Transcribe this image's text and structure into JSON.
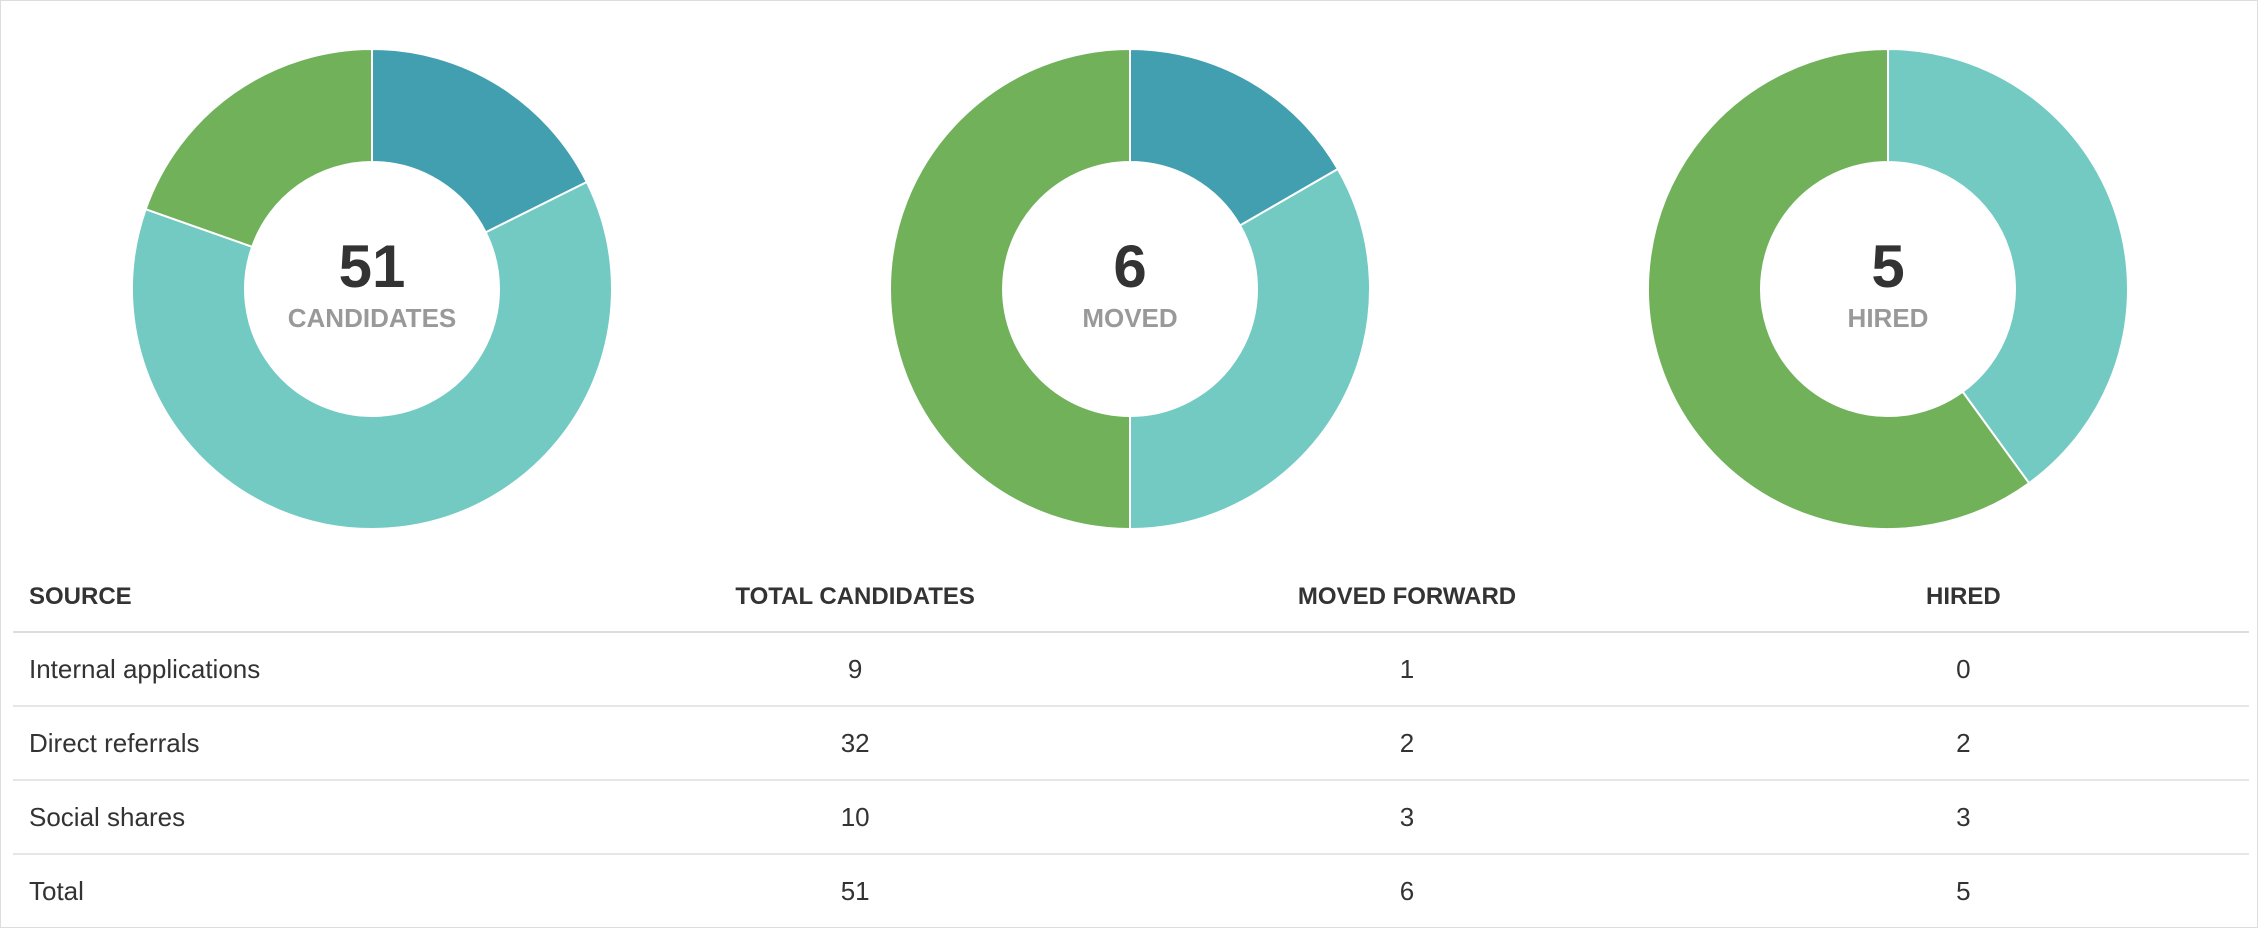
{
  "colors": {
    "segment_a": "#429fb0",
    "segment_b": "#72cac3",
    "segment_c": "#70b15a",
    "separator": "#ffffff"
  },
  "chart_data": [
    {
      "type": "pie",
      "donut": true,
      "title": "",
      "center_value": "51",
      "center_label": "CANDIDATES",
      "slices": [
        {
          "label": "Internal applications",
          "value": 9,
          "color": "#429fb0"
        },
        {
          "label": "Direct referrals",
          "value": 32,
          "color": "#72cac3"
        },
        {
          "label": "Social shares",
          "value": 10,
          "color": "#70b15a"
        }
      ]
    },
    {
      "type": "pie",
      "donut": true,
      "title": "",
      "center_value": "6",
      "center_label": "MOVED",
      "slices": [
        {
          "label": "Internal applications",
          "value": 1,
          "color": "#429fb0"
        },
        {
          "label": "Direct referrals",
          "value": 2,
          "color": "#72cac3"
        },
        {
          "label": "Social shares",
          "value": 3,
          "color": "#70b15a"
        }
      ]
    },
    {
      "type": "pie",
      "donut": true,
      "title": "",
      "center_value": "5",
      "center_label": "HIRED",
      "slices": [
        {
          "label": "Internal applications",
          "value": 0,
          "color": "#429fb0"
        },
        {
          "label": "Direct referrals",
          "value": 2,
          "color": "#72cac3"
        },
        {
          "label": "Social shares",
          "value": 3,
          "color": "#70b15a"
        }
      ]
    }
  ],
  "table": {
    "headers": {
      "source": "SOURCE",
      "total": "TOTAL CANDIDATES",
      "moved": "MOVED FORWARD",
      "hired": "HIRED"
    },
    "rows": [
      {
        "source": "Internal applications",
        "total": "9",
        "moved": "1",
        "hired": "0"
      },
      {
        "source": "Direct referrals",
        "total": "32",
        "moved": "2",
        "hired": "2"
      },
      {
        "source": "Social shares",
        "total": "10",
        "moved": "3",
        "hired": "3"
      },
      {
        "source": "Total",
        "total": "51",
        "moved": "6",
        "hired": "5"
      }
    ]
  }
}
